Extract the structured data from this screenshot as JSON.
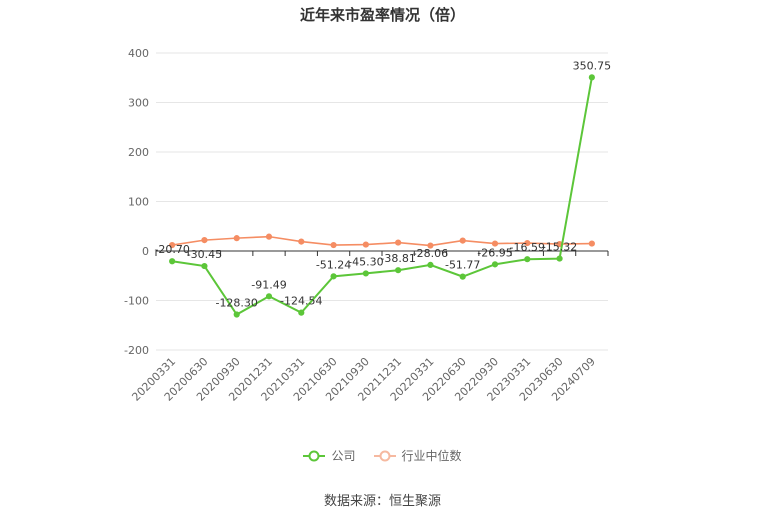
{
  "chart_data": {
    "type": "line",
    "title": "近年来市盈率情况（倍）",
    "categories": [
      "20200331",
      "20200630",
      "20200930",
      "20201231",
      "20210331",
      "20210630",
      "20210930",
      "20211231",
      "20220331",
      "20220630",
      "20220930",
      "20230331",
      "20230630",
      "20240709"
    ],
    "series": [
      {
        "name": "公司",
        "color": "#5cc639",
        "values": [
          -20.7,
          -30.45,
          -128.3,
          -91.49,
          -124.54,
          -51.24,
          -45.3,
          -38.81,
          -28.06,
          -51.77,
          -26.95,
          -16.59,
          -15.32,
          350.75
        ],
        "labels": [
          "-20.70",
          "-30.45",
          "-128.30",
          "-91.49",
          "-124.54",
          "-51.24",
          "-45.30",
          "-38.81",
          "-28.06",
          "-51.77",
          "-26.95",
          "-16.59",
          "-15.32",
          "350.75"
        ]
      },
      {
        "name": "行业中位数",
        "color": "#f58d63",
        "values": [
          12,
          22,
          26,
          29,
          19,
          12,
          13,
          17,
          11,
          21,
          15,
          16,
          14,
          15
        ]
      }
    ],
    "y_ticks": [
      "400",
      "300",
      "200",
      "100",
      "0",
      "-100",
      "-200"
    ],
    "ylim": [
      -200,
      400
    ],
    "grid": true,
    "legend_position": "bottom"
  },
  "source": "数据来源：恒生聚源"
}
